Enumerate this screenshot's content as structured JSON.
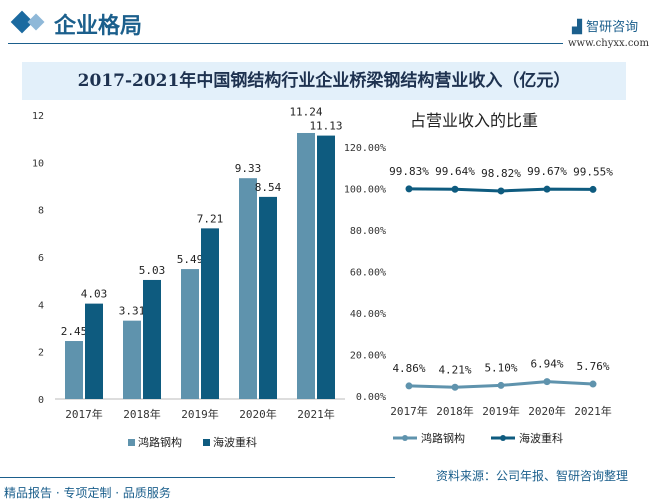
{
  "header": {
    "section_title": "企业格局",
    "logo_text": "智研咨询",
    "url": "www.chyxx.com"
  },
  "title": "2017-2021年中国钢结构行业企业桥梁钢结构营业收入（亿元）",
  "footer": {
    "source": "资料来源：公司年报、智研咨询整理",
    "slogan": "精品报告 · 专项定制 · 品质服务"
  },
  "colors": {
    "series1": "#5f93ad",
    "series2": "#0e5b7f",
    "accent": "#1b5f8c"
  },
  "chart_data": [
    {
      "type": "bar",
      "categories": [
        "2017年",
        "2018年",
        "2019年",
        "2020年",
        "2021年"
      ],
      "series": [
        {
          "name": "鸿路钢构",
          "values": [
            2.45,
            3.31,
            5.49,
            9.33,
            11.24
          ]
        },
        {
          "name": "海波重科",
          "values": [
            4.03,
            5.03,
            7.21,
            8.54,
            11.13
          ]
        }
      ],
      "ylim": [
        0,
        12
      ],
      "yticks": [
        0,
        2,
        4,
        6,
        8,
        10,
        12
      ],
      "legend": "bottom"
    },
    {
      "type": "line",
      "title": "占营业收入的比重",
      "categories": [
        "2017年",
        "2018年",
        "2019年",
        "2020年",
        "2021年"
      ],
      "series": [
        {
          "name": "鸿路钢构",
          "values": [
            4.86,
            4.21,
            5.1,
            6.94,
            5.76
          ],
          "labels": [
            "4.86%",
            "4.21%",
            "5.10%",
            "6.94%",
            "5.76%"
          ]
        },
        {
          "name": "海波重科",
          "values": [
            99.83,
            99.64,
            98.82,
            99.67,
            99.55
          ],
          "labels": [
            "99.83%",
            "99.64%",
            "98.82%",
            "99.67%",
            "99.55%"
          ]
        }
      ],
      "ylim": [
        0,
        120
      ],
      "yticks": [
        "0.00%",
        "20.00%",
        "40.00%",
        "60.00%",
        "80.00%",
        "100.00%",
        "120.00%"
      ],
      "legend": "bottom"
    }
  ]
}
